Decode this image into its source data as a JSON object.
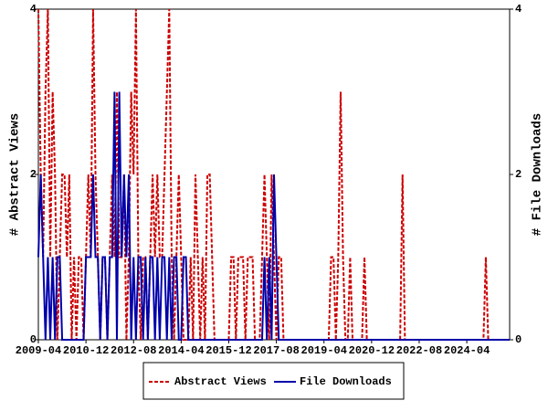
{
  "chart_data": {
    "type": "line",
    "y_label": "# Abstract Views",
    "y2_label": "# File Downloads",
    "x": [
      "2009-04",
      "2009-05",
      "2009-06",
      "2009-07",
      "2009-08",
      "2009-09",
      "2009-10",
      "2009-11",
      "2009-12",
      "2010-01",
      "2010-02",
      "2010-03",
      "2010-04",
      "2010-05",
      "2010-06",
      "2010-07",
      "2010-08",
      "2010-09",
      "2010-10",
      "2010-11",
      "2010-12",
      "2011-01",
      "2011-02",
      "2011-03",
      "2011-04",
      "2011-05",
      "2011-06",
      "2011-07",
      "2011-08",
      "2011-09",
      "2011-10",
      "2011-11",
      "2011-12",
      "2012-01",
      "2012-02",
      "2012-03",
      "2012-04",
      "2012-05",
      "2012-06",
      "2012-07",
      "2012-08",
      "2012-09",
      "2012-10",
      "2012-11",
      "2012-12",
      "2013-01",
      "2013-02",
      "2013-03",
      "2013-04",
      "2013-05",
      "2013-06",
      "2013-07",
      "2013-08",
      "2013-09",
      "2013-10",
      "2013-11",
      "2013-12",
      "2014-01",
      "2014-02",
      "2014-03",
      "2014-04",
      "2014-05",
      "2014-06",
      "2014-07",
      "2014-08",
      "2014-09",
      "2014-10",
      "2014-11",
      "2014-12",
      "2015-01",
      "2015-02",
      "2015-03",
      "2015-04",
      "2015-05",
      "2015-06",
      "2015-07",
      "2015-08",
      "2015-09",
      "2015-10",
      "2015-11",
      "2015-12",
      "2016-01",
      "2016-02",
      "2016-03",
      "2016-04",
      "2016-05",
      "2016-06",
      "2016-07",
      "2016-08",
      "2016-09",
      "2016-10",
      "2016-11",
      "2016-12",
      "2017-01",
      "2017-02",
      "2017-03",
      "2017-04",
      "2017-05",
      "2017-06",
      "2017-07",
      "2017-08",
      "2017-09",
      "2017-10",
      "2017-11",
      "2017-12",
      "2018-01",
      "2018-02",
      "2018-03",
      "2018-04",
      "2018-05",
      "2018-06",
      "2018-07",
      "2018-08",
      "2018-09",
      "2018-10",
      "2018-11",
      "2018-12",
      "2019-01",
      "2019-02",
      "2019-03",
      "2019-04",
      "2019-05",
      "2019-06",
      "2019-07",
      "2019-08",
      "2019-09",
      "2019-10",
      "2019-11",
      "2019-12",
      "2020-01",
      "2020-02",
      "2020-03",
      "2020-04",
      "2020-05",
      "2020-06",
      "2020-07",
      "2020-08",
      "2020-09",
      "2020-10",
      "2020-11",
      "2020-12",
      "2021-01",
      "2021-02",
      "2021-03",
      "2021-04",
      "2021-05",
      "2021-06",
      "2021-07",
      "2021-08",
      "2021-09",
      "2021-10",
      "2021-11",
      "2021-12",
      "2022-01",
      "2022-02",
      "2022-03",
      "2022-04",
      "2022-05",
      "2022-06",
      "2022-07",
      "2022-08",
      "2022-09",
      "2022-10",
      "2022-11",
      "2022-12",
      "2023-01",
      "2023-02",
      "2023-03",
      "2023-04",
      "2023-05",
      "2023-06",
      "2023-07",
      "2023-08",
      "2023-09",
      "2023-10",
      "2023-11",
      "2023-12",
      "2024-01",
      "2024-02",
      "2024-03",
      "2024-04",
      "2024-05",
      "2024-06",
      "2024-07",
      "2024-08",
      "2024-09",
      "2024-10",
      "2024-11",
      "2024-12",
      "2025-01",
      "2025-02",
      "2025-03",
      "2025-04",
      "2025-05",
      "2025-06",
      "2025-07",
      "2025-08",
      "2025-09",
      "2025-10"
    ],
    "xticks": [
      "2009-04",
      "2010-12",
      "2012-08",
      "2014-04",
      "2015-12",
      "2017-08",
      "2019-04",
      "2020-12",
      "2022-08",
      "2024-04"
    ],
    "ylim": [
      0,
      4
    ],
    "yticks": [
      0,
      2,
      4
    ],
    "y2lim": [
      0,
      4
    ],
    "y2ticks": [
      0,
      2,
      4
    ],
    "legend": "bottom",
    "series": [
      {
        "name": "Abstract Views",
        "color": "#cc0000",
        "dashed": true,
        "values": [
          4,
          2,
          1,
          3,
          4,
          1,
          3,
          2,
          0,
          1,
          2,
          2,
          1,
          2,
          0,
          1,
          0,
          1,
          1,
          0,
          1,
          2,
          1,
          4,
          2,
          1,
          0,
          1,
          1,
          0,
          1,
          2,
          1,
          3,
          1,
          1,
          2,
          0,
          1,
          3,
          2,
          4,
          1,
          0,
          1,
          1,
          0,
          1,
          2,
          1,
          2,
          1,
          1,
          2,
          3,
          4,
          1,
          0,
          1,
          2,
          1,
          0,
          0,
          0,
          1,
          0,
          2,
          1,
          0,
          1,
          0,
          2,
          2,
          1,
          0,
          0,
          0,
          0,
          0,
          0,
          0,
          1,
          1,
          0,
          1,
          1,
          1,
          0,
          1,
          1,
          1,
          0,
          0,
          0,
          1,
          2,
          1,
          0,
          2,
          1,
          0,
          1,
          1,
          0,
          0,
          0,
          0,
          0,
          0,
          0,
          0,
          0,
          0,
          0,
          0,
          0,
          0,
          0,
          0,
          0,
          0,
          0,
          0,
          1,
          1,
          0,
          1,
          3,
          1,
          0,
          0,
          1,
          0,
          0,
          0,
          0,
          0,
          1,
          0,
          0,
          0,
          0,
          0,
          0,
          0,
          0,
          0,
          0,
          0,
          0,
          0,
          0,
          0,
          2,
          0,
          0,
          0,
          0,
          0,
          0,
          0,
          0,
          0,
          0,
          0,
          0,
          0,
          0,
          0,
          0,
          0,
          0,
          0,
          0,
          0,
          0,
          0,
          0,
          0,
          0,
          0,
          0,
          0,
          0,
          0,
          0,
          0,
          0,
          1,
          0,
          0,
          0,
          0,
          0,
          0,
          0,
          0,
          0,
          0
        ]
      },
      {
        "name": "File Downloads",
        "color": "#0000aa",
        "axis": "y2",
        "values": [
          1,
          2,
          1,
          0,
          1,
          0,
          1,
          0,
          1,
          1,
          0,
          0,
          0,
          0,
          0,
          0,
          0,
          0,
          0,
          0,
          1,
          1,
          1,
          2,
          1,
          1,
          0,
          1,
          1,
          0,
          1,
          1,
          3,
          0,
          3,
          1,
          2,
          1,
          2,
          0,
          1,
          0,
          1,
          1,
          0,
          1,
          0,
          1,
          1,
          0,
          1,
          0,
          1,
          1,
          0,
          1,
          0,
          1,
          1,
          0,
          0,
          1,
          1,
          0,
          0,
          0,
          0,
          0,
          0,
          0,
          0,
          0,
          0,
          0,
          0,
          0,
          0,
          0,
          0,
          0,
          0,
          0,
          0,
          0,
          0,
          0,
          0,
          0,
          0,
          0,
          0,
          0,
          0,
          0,
          0,
          1,
          0,
          1,
          0,
          2,
          1,
          0,
          0,
          0,
          0,
          0,
          0,
          0,
          0,
          0,
          0,
          0,
          0,
          0,
          0,
          0,
          0,
          0,
          0,
          0,
          0,
          0,
          0,
          0,
          0,
          0,
          0,
          0,
          0,
          0,
          0,
          0,
          0,
          0,
          0,
          0,
          0,
          0,
          0,
          0,
          0,
          0,
          0,
          0,
          0,
          0,
          0,
          0,
          0,
          0,
          0,
          0,
          0,
          0,
          0,
          0,
          0,
          0,
          0,
          0,
          0,
          0,
          0,
          0,
          0,
          0,
          0,
          0,
          0,
          0,
          0,
          0,
          0,
          0,
          0,
          0,
          0,
          0,
          0,
          0,
          0,
          0,
          0,
          0,
          0,
          0,
          0,
          0,
          0,
          0,
          0,
          0,
          0,
          0,
          0,
          0,
          0,
          0,
          0
        ]
      }
    ]
  }
}
